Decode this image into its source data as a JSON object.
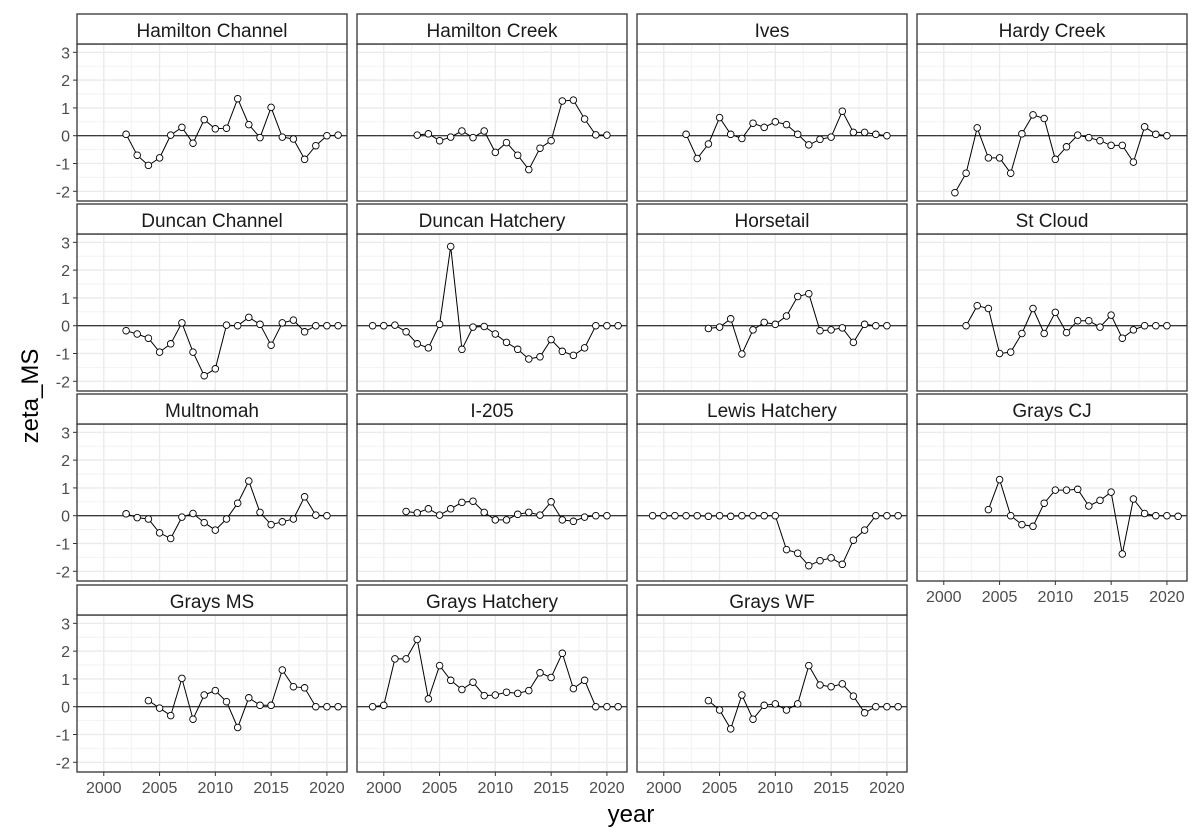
{
  "chart_data": {
    "type": "line",
    "xlabel": "year",
    "ylabel": "zeta_MS",
    "xlim": [
      1997.6,
      2021.8
    ],
    "ylim": [
      -2.35,
      3.3
    ],
    "xticks": [
      2000,
      2005,
      2010,
      2015,
      2020
    ],
    "yticks": [
      -2,
      -1,
      0,
      1,
      2,
      3
    ],
    "reference_line_y": 0,
    "grid": true,
    "panels": [
      {
        "title": "Hamilton Channel",
        "x": [
          2002,
          2003,
          2004,
          2005,
          2006,
          2007,
          2008,
          2009,
          2010,
          2011,
          2012,
          2013,
          2014,
          2015,
          2016,
          2017,
          2018,
          2019,
          2020,
          2021
        ],
        "y": [
          0.05,
          -0.7,
          -1.07,
          -0.8,
          0.02,
          0.3,
          -0.27,
          0.58,
          0.25,
          0.27,
          1.33,
          0.4,
          -0.07,
          1.02,
          -0.05,
          -0.12,
          -0.85,
          -0.36,
          0.0,
          0.02
        ]
      },
      {
        "title": "Hamilton Creek",
        "x": [
          2003,
          2004,
          2005,
          2006,
          2007,
          2008,
          2009,
          2010,
          2011,
          2012,
          2013,
          2014,
          2015,
          2016,
          2017,
          2018,
          2019,
          2020
        ],
        "y": [
          0.02,
          0.07,
          -0.18,
          -0.05,
          0.17,
          -0.07,
          0.17,
          -0.6,
          -0.25,
          -0.7,
          -1.22,
          -0.45,
          -0.18,
          1.25,
          1.28,
          0.6,
          0.03,
          0.02
        ]
      },
      {
        "title": "Ives",
        "x": [
          2002,
          2003,
          2004,
          2005,
          2006,
          2007,
          2008,
          2009,
          2010,
          2011,
          2012,
          2013,
          2014,
          2015,
          2016,
          2017,
          2018,
          2019,
          2020
        ],
        "y": [
          0.05,
          -0.82,
          -0.3,
          0.65,
          0.05,
          -0.1,
          0.45,
          0.3,
          0.5,
          0.4,
          0.05,
          -0.33,
          -0.13,
          -0.05,
          0.88,
          0.12,
          0.12,
          0.05,
          0.0
        ]
      },
      {
        "title": "Hardy Creek",
        "x": [
          2001,
          2002,
          2003,
          2004,
          2005,
          2006,
          2007,
          2008,
          2009,
          2010,
          2011,
          2012,
          2013,
          2014,
          2015,
          2016,
          2017,
          2018,
          2019,
          2020
        ],
        "y": [
          -2.05,
          -1.35,
          0.28,
          -0.8,
          -0.8,
          -1.35,
          0.07,
          0.75,
          0.62,
          -0.85,
          -0.4,
          0.02,
          -0.07,
          -0.18,
          -0.35,
          -0.35,
          -0.95,
          0.32,
          0.05,
          0.0
        ]
      },
      {
        "title": "Duncan Channel",
        "x": [
          2002,
          2003,
          2004,
          2005,
          2006,
          2007,
          2008,
          2009,
          2010,
          2011,
          2012,
          2013,
          2014,
          2015,
          2016,
          2017,
          2018,
          2019,
          2020,
          2021
        ],
        "y": [
          -0.18,
          -0.3,
          -0.45,
          -0.95,
          -0.65,
          0.1,
          -0.95,
          -1.8,
          -1.55,
          0.02,
          0.0,
          0.3,
          0.05,
          -0.7,
          0.1,
          0.2,
          -0.22,
          0.0,
          0.0,
          0.0
        ]
      },
      {
        "title": "Duncan Hatchery",
        "x": [
          1999,
          2000,
          2001,
          2002,
          2003,
          2004,
          2005,
          2006,
          2007,
          2008,
          2009,
          2010,
          2011,
          2012,
          2013,
          2014,
          2015,
          2016,
          2017,
          2018,
          2019,
          2020,
          2021
        ],
        "y": [
          0.0,
          0.0,
          0.02,
          -0.22,
          -0.65,
          -0.8,
          0.05,
          2.85,
          -0.85,
          -0.05,
          -0.03,
          -0.3,
          -0.6,
          -0.85,
          -1.2,
          -1.12,
          -0.5,
          -0.92,
          -1.07,
          -0.8,
          0.0,
          0.0,
          0.0
        ]
      },
      {
        "title": "Horsetail",
        "x": [
          2004,
          2005,
          2006,
          2007,
          2008,
          2009,
          2010,
          2011,
          2012,
          2013,
          2014,
          2015,
          2016,
          2017,
          2018,
          2019,
          2020
        ],
        "y": [
          -0.1,
          -0.05,
          0.25,
          -1.02,
          -0.15,
          0.12,
          0.05,
          0.35,
          1.05,
          1.15,
          -0.18,
          -0.15,
          -0.08,
          -0.6,
          0.05,
          0.0,
          0.0
        ]
      },
      {
        "title": "St Cloud",
        "x": [
          2002,
          2003,
          2004,
          2005,
          2006,
          2007,
          2008,
          2009,
          2010,
          2011,
          2012,
          2013,
          2014,
          2015,
          2016,
          2017,
          2018,
          2019,
          2020
        ],
        "y": [
          0.0,
          0.72,
          0.62,
          -1.0,
          -0.95,
          -0.28,
          0.62,
          -0.28,
          0.48,
          -0.25,
          0.18,
          0.18,
          -0.05,
          0.38,
          -0.45,
          -0.15,
          0.0,
          0.0,
          0.0
        ]
      },
      {
        "title": "Multnomah",
        "x": [
          2002,
          2003,
          2004,
          2005,
          2006,
          2007,
          2008,
          2009,
          2010,
          2011,
          2012,
          2013,
          2014,
          2015,
          2016,
          2017,
          2018,
          2019,
          2020
        ],
        "y": [
          0.07,
          -0.07,
          -0.12,
          -0.62,
          -0.82,
          -0.05,
          0.08,
          -0.25,
          -0.52,
          -0.12,
          0.45,
          1.25,
          0.12,
          -0.32,
          -0.22,
          -0.12,
          0.68,
          0.02,
          0.0
        ]
      },
      {
        "title": "I-205",
        "x": [
          2002,
          2003,
          2004,
          2005,
          2006,
          2007,
          2008,
          2009,
          2010,
          2011,
          2012,
          2013,
          2014,
          2015,
          2016,
          2017,
          2018,
          2019,
          2020
        ],
        "y": [
          0.15,
          0.1,
          0.25,
          0.02,
          0.25,
          0.48,
          0.52,
          0.12,
          -0.15,
          -0.15,
          0.05,
          0.12,
          0.02,
          0.5,
          -0.15,
          -0.2,
          -0.05,
          0.0,
          0.0
        ]
      },
      {
        "title": "Lewis Hatchery",
        "x": [
          1999,
          2000,
          2001,
          2002,
          2003,
          2004,
          2005,
          2006,
          2007,
          2008,
          2009,
          2010,
          2011,
          2012,
          2013,
          2014,
          2015,
          2016,
          2017,
          2018,
          2019,
          2020,
          2021
        ],
        "y": [
          0.0,
          0.0,
          0.0,
          0.0,
          0.0,
          -0.02,
          0.0,
          -0.02,
          0.0,
          0.0,
          0.0,
          0.0,
          -1.22,
          -1.35,
          -1.8,
          -1.62,
          -1.52,
          -1.75,
          -0.88,
          -0.52,
          0.0,
          0.0,
          0.0
        ]
      },
      {
        "title": "Grays CJ",
        "x": [
          2004,
          2005,
          2006,
          2007,
          2008,
          2009,
          2010,
          2011,
          2012,
          2013,
          2014,
          2015,
          2016,
          2017,
          2018,
          2019,
          2020,
          2021
        ],
        "y": [
          0.22,
          1.3,
          0.0,
          -0.32,
          -0.38,
          0.45,
          0.92,
          0.92,
          0.95,
          0.35,
          0.55,
          0.85,
          -1.38,
          0.6,
          0.08,
          0.0,
          0.0,
          -0.02
        ]
      },
      {
        "title": "Grays MS",
        "x": [
          2004,
          2005,
          2006,
          2007,
          2008,
          2009,
          2010,
          2011,
          2012,
          2013,
          2014,
          2015,
          2016,
          2017,
          2018,
          2019,
          2020,
          2021
        ],
        "y": [
          0.22,
          -0.05,
          -0.32,
          1.02,
          -0.45,
          0.42,
          0.58,
          0.18,
          -0.75,
          0.32,
          0.05,
          0.05,
          1.32,
          0.72,
          0.68,
          0.0,
          0.0,
          0.0
        ]
      },
      {
        "title": "Grays Hatchery",
        "x": [
          1999,
          2000,
          2001,
          2002,
          2003,
          2004,
          2005,
          2006,
          2007,
          2008,
          2009,
          2010,
          2011,
          2012,
          2013,
          2014,
          2015,
          2016,
          2017,
          2018,
          2019,
          2020,
          2021
        ],
        "y": [
          0.0,
          0.05,
          1.72,
          1.72,
          2.42,
          0.28,
          1.48,
          0.95,
          0.62,
          0.88,
          0.4,
          0.42,
          0.52,
          0.48,
          0.58,
          1.22,
          1.05,
          1.92,
          0.65,
          0.95,
          0.0,
          0.0,
          0.0
        ]
      },
      {
        "title": "Grays WF",
        "x": [
          2004,
          2005,
          2006,
          2007,
          2008,
          2009,
          2010,
          2011,
          2012,
          2013,
          2014,
          2015,
          2016,
          2017,
          2018,
          2019,
          2020,
          2021
        ],
        "y": [
          0.22,
          -0.12,
          -0.8,
          0.42,
          -0.45,
          0.05,
          0.1,
          -0.12,
          0.1,
          1.48,
          0.78,
          0.72,
          0.82,
          0.38,
          -0.22,
          0.0,
          0.0,
          0.0
        ]
      }
    ]
  }
}
